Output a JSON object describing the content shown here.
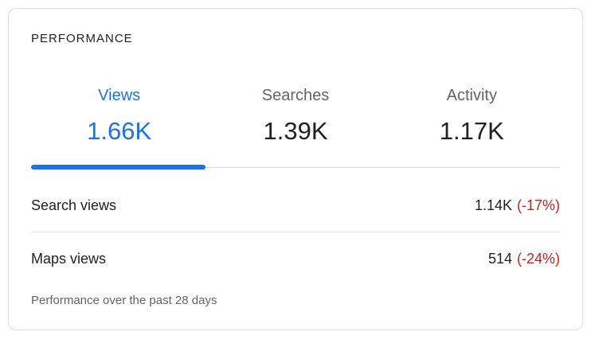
{
  "card": {
    "title": "PERFORMANCE",
    "tabs": [
      {
        "label": "Views",
        "value": "1.66K",
        "active": true
      },
      {
        "label": "Searches",
        "value": "1.39K",
        "active": false
      },
      {
        "label": "Activity",
        "value": "1.17K",
        "active": false
      }
    ],
    "active_tab": "Views",
    "rows": [
      {
        "label": "Search views",
        "value": "1.14K",
        "change": "(-17%)"
      },
      {
        "label": "Maps views",
        "value": "514",
        "change": "(-24%)"
      }
    ],
    "footer": "Performance over the past 28 days",
    "colors": {
      "accent": "#1a73e8",
      "negative": "#c5221f",
      "text_primary": "#202124",
      "text_secondary": "#5f6368",
      "border": "#dadce0"
    }
  }
}
